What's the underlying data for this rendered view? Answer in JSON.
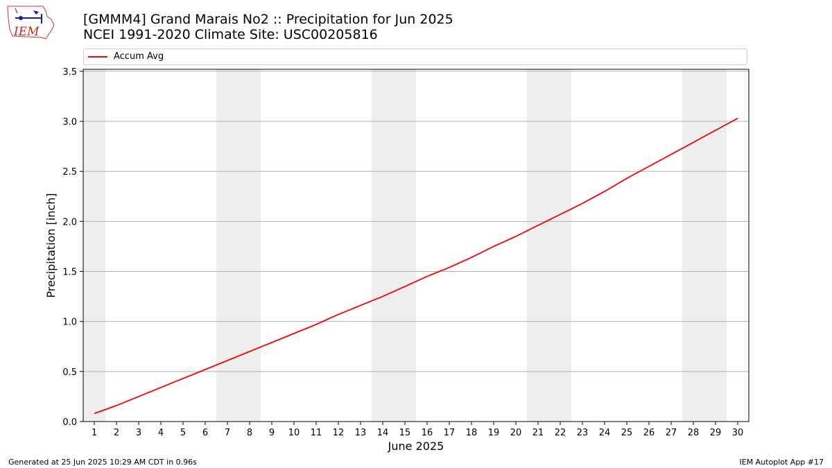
{
  "header": {
    "title_line1": "[GMMM4] Grand Marais No2 :: Precipitation for Jun 2025",
    "title_line2": "NCEI 1991-2020 Climate Site: USC00205816",
    "logo_text": "IEM"
  },
  "footer": {
    "left": "Generated at 25 Jun 2025 10:29 AM CDT in 0.96s",
    "right": "IEM Autoplot App #17"
  },
  "colors": {
    "line": "#ff0000",
    "weekend_band": "#eeeeee",
    "grid": "#b0b0b0"
  },
  "chart_data": {
    "type": "line",
    "title": "[GMMM4] Grand Marais No2 :: Precipitation for Jun 2025",
    "subtitle": "NCEI 1991-2020 Climate Site: USC00205816",
    "xlabel": "June 2025",
    "ylabel": "Precipitation [inch]",
    "xlim": [
      0.5,
      30.5
    ],
    "ylim": [
      0,
      3.52
    ],
    "x_ticks": [
      1,
      2,
      3,
      4,
      5,
      6,
      7,
      8,
      9,
      10,
      11,
      12,
      13,
      14,
      15,
      16,
      17,
      18,
      19,
      20,
      21,
      22,
      23,
      24,
      25,
      26,
      27,
      28,
      29,
      30
    ],
    "y_ticks": [
      0.0,
      0.5,
      1.0,
      1.5,
      2.0,
      2.5,
      3.0,
      3.5
    ],
    "y_tick_labels": [
      "0.0",
      "0.5",
      "1.0",
      "1.5",
      "2.0",
      "2.5",
      "3.0",
      "3.5"
    ],
    "grid": "y",
    "legend_position": "top",
    "weekend_bands": [
      [
        0.5,
        1.5
      ],
      [
        6.5,
        8.5
      ],
      [
        13.5,
        15.5
      ],
      [
        20.5,
        22.5
      ],
      [
        27.5,
        29.5
      ]
    ],
    "series": [
      {
        "name": "Accum Avg",
        "x": [
          1,
          2,
          3,
          4,
          5,
          6,
          7,
          8,
          9,
          10,
          11,
          12,
          13,
          14,
          15,
          16,
          17,
          18,
          19,
          20,
          21,
          22,
          23,
          24,
          25,
          26,
          27,
          28,
          29,
          30
        ],
        "values": [
          0.08,
          0.16,
          0.25,
          0.34,
          0.43,
          0.52,
          0.61,
          0.7,
          0.79,
          0.88,
          0.97,
          1.07,
          1.16,
          1.25,
          1.35,
          1.45,
          1.54,
          1.64,
          1.75,
          1.85,
          1.96,
          2.07,
          2.18,
          2.3,
          2.43,
          2.55,
          2.67,
          2.79,
          2.91,
          3.03
        ]
      }
    ]
  }
}
